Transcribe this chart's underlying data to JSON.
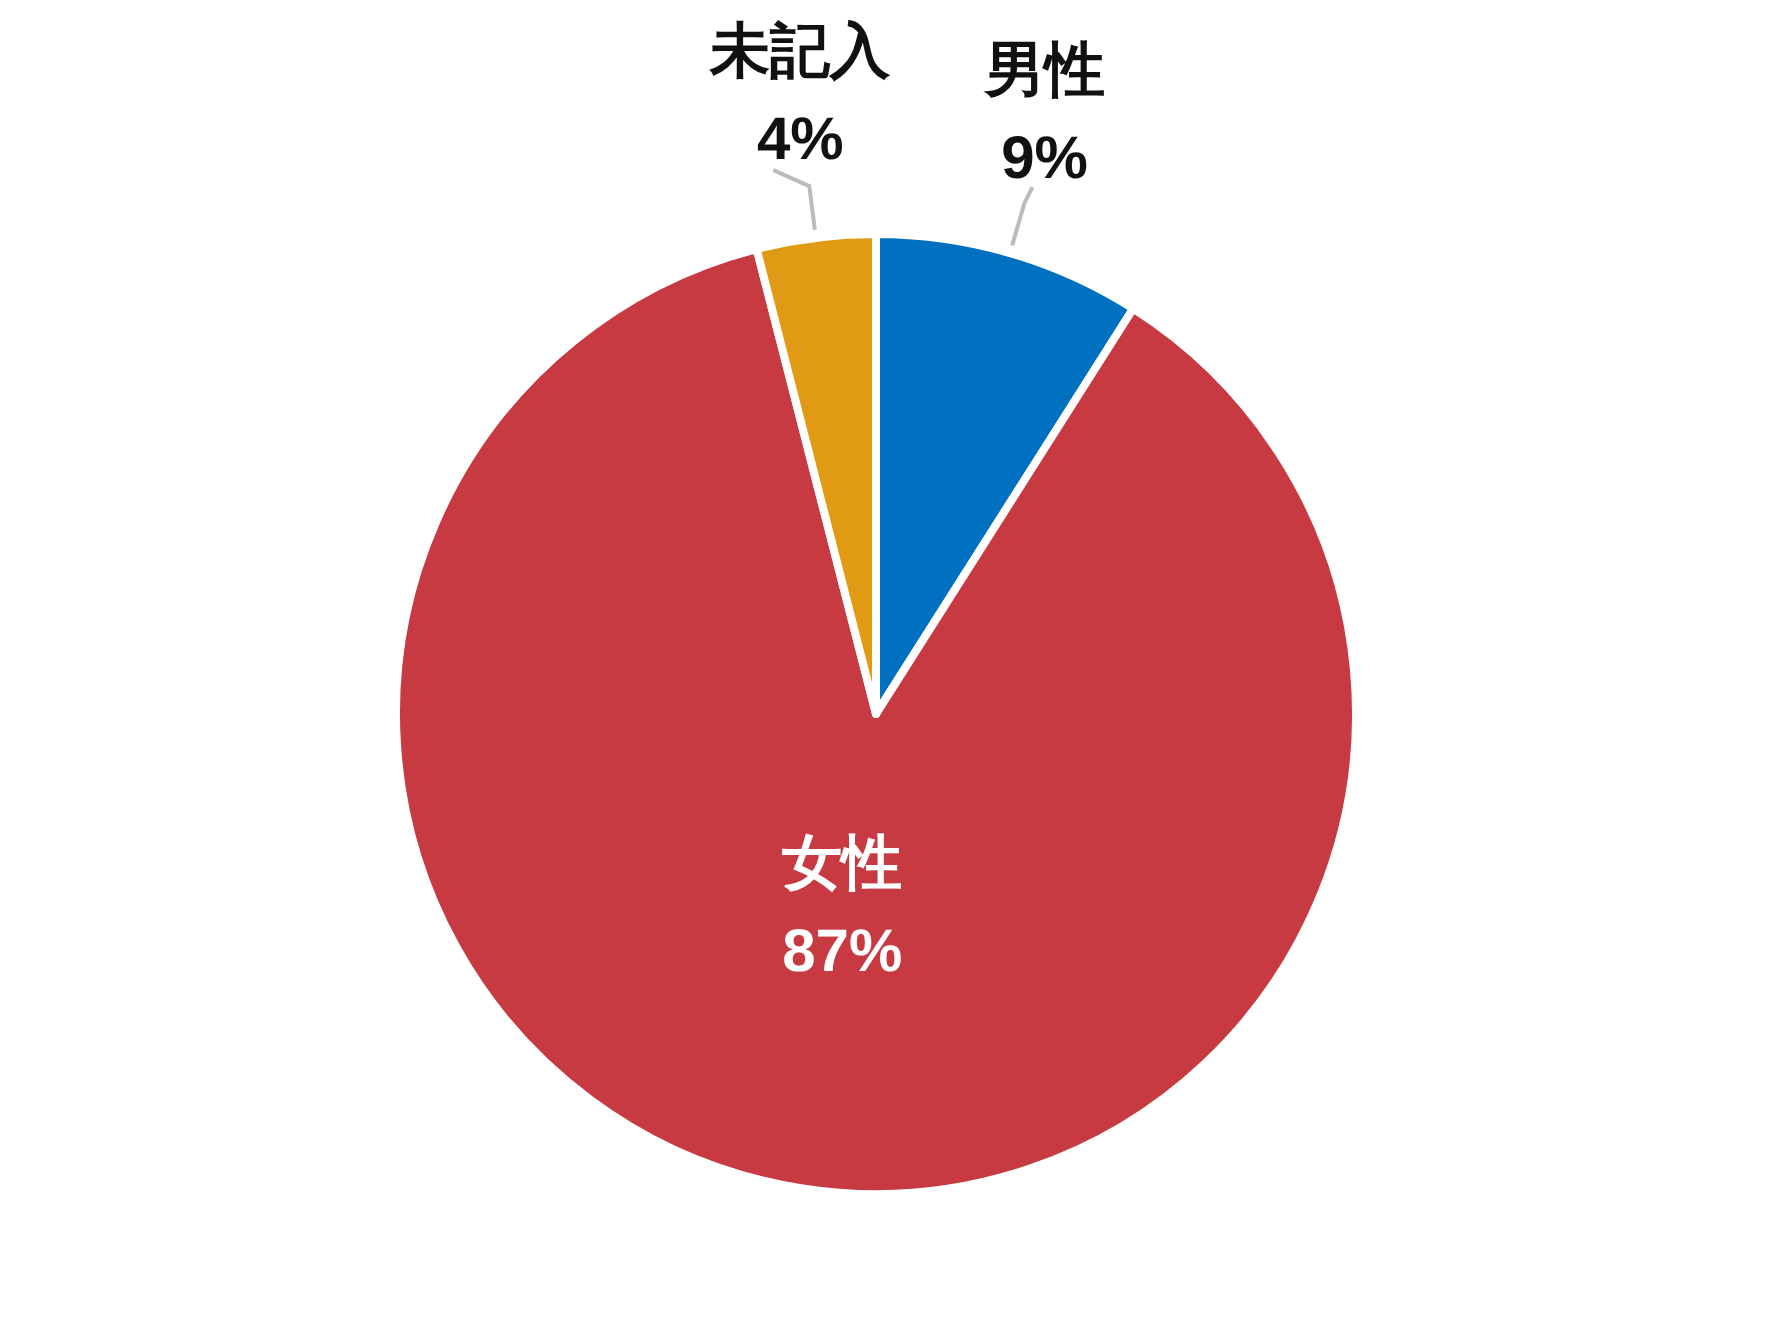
{
  "chart_data": {
    "type": "pie",
    "categories": [
      "男性",
      "女性",
      "未記入"
    ],
    "values": [
      9,
      87,
      4
    ],
    "colors": [
      "#0070c0",
      "#c83a42",
      "#e09a14"
    ],
    "value_labels": [
      "9%",
      "87%",
      "4%"
    ],
    "legend": false
  }
}
